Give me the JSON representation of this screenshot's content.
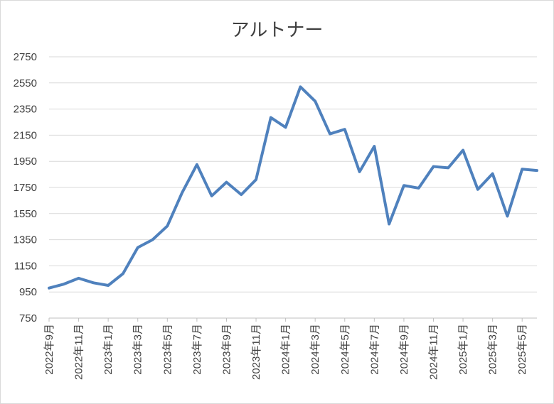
{
  "chart_data": {
    "type": "line",
    "title": "アルトナー",
    "xlabel": "",
    "ylabel": "",
    "ylim": [
      750,
      2750
    ],
    "yticks": [
      750,
      950,
      1150,
      1350,
      1550,
      1750,
      1950,
      2150,
      2350,
      2550,
      2750
    ],
    "grid": true,
    "legend": "none",
    "line_color": "#4f81bd",
    "x": [
      "2022年9月",
      "2022年10月",
      "2022年11月",
      "2022年12月",
      "2023年1月",
      "2023年2月",
      "2023年3月",
      "2023年4月",
      "2023年5月",
      "2023年6月",
      "2023年7月",
      "2023年8月",
      "2023年9月",
      "2023年10月",
      "2023年11月",
      "2023年12月",
      "2024年1月",
      "2024年2月",
      "2024年3月",
      "2024年4月",
      "2024年5月",
      "2024年6月",
      "2024年7月",
      "2024年8月",
      "2024年9月",
      "2024年10月",
      "2024年11月",
      "2024年12月",
      "2025年1月",
      "2025年2月",
      "2025年3月",
      "2025年4月",
      "2025年5月",
      "2025年6月"
    ],
    "x_tick_labels": [
      "2022年9月",
      "2022年11月",
      "2023年1月",
      "2023年3月",
      "2023年5月",
      "2023年7月",
      "2023年9月",
      "2023年11月",
      "2024年1月",
      "2024年3月",
      "2024年5月",
      "2024年7月",
      "2024年9月",
      "2024年11月",
      "2025年1月",
      "2025年3月",
      "2025年5月"
    ],
    "series": [
      {
        "values": [
          980,
          1010,
          1055,
          1020,
          1000,
          1090,
          1290,
          1350,
          1455,
          1710,
          1925,
          1685,
          1790,
          1695,
          1810,
          2285,
          2210,
          2520,
          2410,
          2160,
          2195,
          1870,
          2065,
          1470,
          1765,
          1745,
          1910,
          1900,
          2035,
          1735,
          1855,
          1530,
          1890,
          1880
        ]
      }
    ]
  }
}
